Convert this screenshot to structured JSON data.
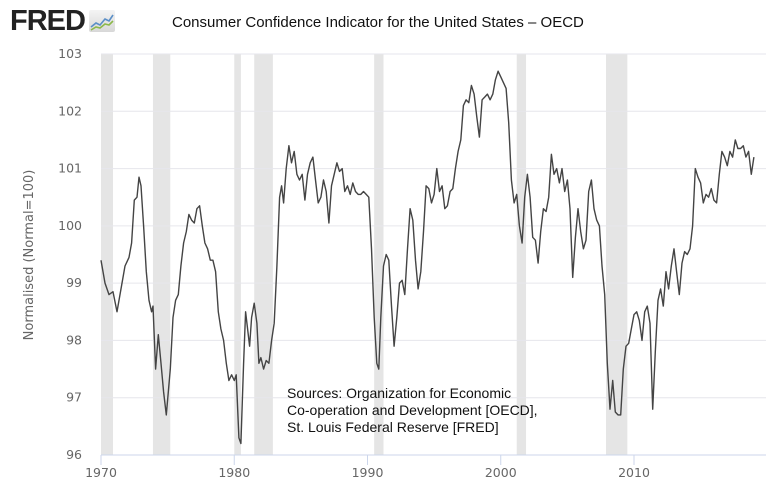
{
  "header": {
    "logo_text": "FRED",
    "logo_icon": "chart-line-icon"
  },
  "chart_data": {
    "type": "line",
    "title": "Consumer Confidence Indicator for the United States – OECD",
    "xlabel": "",
    "ylabel": "Normalised (Normal=100)",
    "ylim": [
      96,
      103
    ],
    "xlim": [
      1970,
      2019.2
    ],
    "yticks": [
      "96",
      "97",
      "98",
      "99",
      "100",
      "101",
      "102",
      "103"
    ],
    "xticks": [
      "1970",
      "1980",
      "1990",
      "2000",
      "2010"
    ],
    "grid": true,
    "line_color": "#444444",
    "recession_color": "#e5e5e5",
    "recessions": [
      [
        1970.0,
        1970.9
      ],
      [
        1973.9,
        1975.2
      ],
      [
        1980.0,
        1980.5
      ],
      [
        1981.5,
        1982.9
      ],
      [
        1990.5,
        1991.2
      ],
      [
        2001.2,
        2001.9
      ],
      [
        2007.9,
        2009.5
      ]
    ],
    "series": [
      {
        "name": "Consumer Confidence Indicator",
        "points": [
          [
            1970.0,
            99.4
          ],
          [
            1970.3,
            99.0
          ],
          [
            1970.6,
            98.8
          ],
          [
            1970.9,
            98.85
          ],
          [
            1971.2,
            98.5
          ],
          [
            1971.5,
            98.9
          ],
          [
            1971.8,
            99.3
          ],
          [
            1972.1,
            99.45
          ],
          [
            1972.3,
            99.7
          ],
          [
            1972.5,
            100.45
          ],
          [
            1972.7,
            100.5
          ],
          [
            1972.85,
            100.85
          ],
          [
            1973.0,
            100.7
          ],
          [
            1973.2,
            100.0
          ],
          [
            1973.4,
            99.2
          ],
          [
            1973.6,
            98.7
          ],
          [
            1973.8,
            98.5
          ],
          [
            1973.9,
            98.6
          ],
          [
            1974.1,
            97.5
          ],
          [
            1974.3,
            98.1
          ],
          [
            1974.5,
            97.6
          ],
          [
            1974.7,
            97.1
          ],
          [
            1974.9,
            96.7
          ],
          [
            1975.2,
            97.5
          ],
          [
            1975.4,
            98.4
          ],
          [
            1975.6,
            98.7
          ],
          [
            1975.8,
            98.8
          ],
          [
            1976.0,
            99.3
          ],
          [
            1976.2,
            99.7
          ],
          [
            1976.4,
            99.9
          ],
          [
            1976.6,
            100.2
          ],
          [
            1976.8,
            100.1
          ],
          [
            1977.0,
            100.05
          ],
          [
            1977.2,
            100.3
          ],
          [
            1977.4,
            100.35
          ],
          [
            1977.6,
            100.0
          ],
          [
            1977.8,
            99.7
          ],
          [
            1978.0,
            99.6
          ],
          [
            1978.2,
            99.4
          ],
          [
            1978.4,
            99.4
          ],
          [
            1978.6,
            99.2
          ],
          [
            1978.8,
            98.5
          ],
          [
            1979.0,
            98.2
          ],
          [
            1979.2,
            98.0
          ],
          [
            1979.4,
            97.6
          ],
          [
            1979.6,
            97.3
          ],
          [
            1979.8,
            97.4
          ],
          [
            1980.0,
            97.3
          ],
          [
            1980.15,
            97.4
          ],
          [
            1980.35,
            96.3
          ],
          [
            1980.5,
            96.2
          ],
          [
            1980.7,
            97.6
          ],
          [
            1980.85,
            98.5
          ],
          [
            1981.0,
            98.2
          ],
          [
            1981.15,
            97.9
          ],
          [
            1981.3,
            98.4
          ],
          [
            1981.5,
            98.65
          ],
          [
            1981.7,
            98.3
          ],
          [
            1981.85,
            97.6
          ],
          [
            1982.0,
            97.7
          ],
          [
            1982.2,
            97.5
          ],
          [
            1982.4,
            97.65
          ],
          [
            1982.6,
            97.6
          ],
          [
            1982.8,
            98.0
          ],
          [
            1983.0,
            98.3
          ],
          [
            1983.2,
            99.3
          ],
          [
            1983.4,
            100.5
          ],
          [
            1983.55,
            100.7
          ],
          [
            1983.7,
            100.4
          ],
          [
            1983.9,
            101.0
          ],
          [
            1984.1,
            101.4
          ],
          [
            1984.3,
            101.1
          ],
          [
            1984.5,
            101.3
          ],
          [
            1984.7,
            100.9
          ],
          [
            1984.9,
            100.8
          ],
          [
            1985.1,
            100.9
          ],
          [
            1985.3,
            100.45
          ],
          [
            1985.5,
            100.9
          ],
          [
            1985.7,
            101.1
          ],
          [
            1985.9,
            101.2
          ],
          [
            1986.1,
            100.8
          ],
          [
            1986.3,
            100.4
          ],
          [
            1986.5,
            100.5
          ],
          [
            1986.7,
            100.8
          ],
          [
            1986.9,
            100.6
          ],
          [
            1987.1,
            100.05
          ],
          [
            1987.3,
            100.7
          ],
          [
            1987.5,
            100.9
          ],
          [
            1987.7,
            101.1
          ],
          [
            1987.9,
            100.95
          ],
          [
            1988.1,
            101.0
          ],
          [
            1988.3,
            100.6
          ],
          [
            1988.5,
            100.7
          ],
          [
            1988.7,
            100.55
          ],
          [
            1988.9,
            100.75
          ],
          [
            1989.1,
            100.6
          ],
          [
            1989.3,
            100.55
          ],
          [
            1989.5,
            100.55
          ],
          [
            1989.7,
            100.6
          ],
          [
            1989.9,
            100.55
          ],
          [
            1990.1,
            100.5
          ],
          [
            1990.3,
            99.6
          ],
          [
            1990.5,
            98.4
          ],
          [
            1990.7,
            97.6
          ],
          [
            1990.85,
            97.5
          ],
          [
            1991.0,
            98.4
          ],
          [
            1991.2,
            99.3
          ],
          [
            1991.4,
            99.5
          ],
          [
            1991.6,
            99.4
          ],
          [
            1991.8,
            98.6
          ],
          [
            1992.0,
            97.9
          ],
          [
            1992.2,
            98.4
          ],
          [
            1992.4,
            99.0
          ],
          [
            1992.6,
            99.05
          ],
          [
            1992.8,
            98.8
          ],
          [
            1993.0,
            99.6
          ],
          [
            1993.2,
            100.3
          ],
          [
            1993.4,
            100.1
          ],
          [
            1993.6,
            99.4
          ],
          [
            1993.8,
            98.9
          ],
          [
            1994.0,
            99.2
          ],
          [
            1994.2,
            99.9
          ],
          [
            1994.4,
            100.7
          ],
          [
            1994.6,
            100.65
          ],
          [
            1994.8,
            100.4
          ],
          [
            1995.0,
            100.55
          ],
          [
            1995.2,
            101.0
          ],
          [
            1995.4,
            100.6
          ],
          [
            1995.6,
            100.7
          ],
          [
            1995.8,
            100.3
          ],
          [
            1996.0,
            100.35
          ],
          [
            1996.2,
            100.6
          ],
          [
            1996.4,
            100.65
          ],
          [
            1996.6,
            101.0
          ],
          [
            1996.8,
            101.3
          ],
          [
            1997.0,
            101.5
          ],
          [
            1997.2,
            102.1
          ],
          [
            1997.4,
            102.2
          ],
          [
            1997.6,
            102.15
          ],
          [
            1997.8,
            102.45
          ],
          [
            1998.0,
            102.3
          ],
          [
            1998.2,
            101.9
          ],
          [
            1998.4,
            101.55
          ],
          [
            1998.6,
            102.2
          ],
          [
            1998.8,
            102.25
          ],
          [
            1999.0,
            102.3
          ],
          [
            1999.2,
            102.2
          ],
          [
            1999.4,
            102.3
          ],
          [
            1999.6,
            102.55
          ],
          [
            1999.8,
            102.7
          ],
          [
            2000.0,
            102.6
          ],
          [
            2000.2,
            102.5
          ],
          [
            2000.4,
            102.4
          ],
          [
            2000.6,
            101.8
          ],
          [
            2000.8,
            100.8
          ],
          [
            2001.0,
            100.4
          ],
          [
            2001.2,
            100.55
          ],
          [
            2001.4,
            100.0
          ],
          [
            2001.6,
            99.7
          ],
          [
            2001.8,
            100.5
          ],
          [
            2002.0,
            100.9
          ],
          [
            2002.2,
            100.5
          ],
          [
            2002.4,
            99.8
          ],
          [
            2002.6,
            99.75
          ],
          [
            2002.8,
            99.35
          ],
          [
            2003.0,
            99.9
          ],
          [
            2003.2,
            100.3
          ],
          [
            2003.4,
            100.25
          ],
          [
            2003.6,
            100.5
          ],
          [
            2003.8,
            101.25
          ],
          [
            2004.0,
            100.9
          ],
          [
            2004.2,
            101.0
          ],
          [
            2004.4,
            100.75
          ],
          [
            2004.6,
            101.0
          ],
          [
            2004.8,
            100.6
          ],
          [
            2005.0,
            100.8
          ],
          [
            2005.2,
            100.3
          ],
          [
            2005.4,
            99.1
          ],
          [
            2005.6,
            99.8
          ],
          [
            2005.8,
            100.3
          ],
          [
            2006.0,
            99.9
          ],
          [
            2006.2,
            99.6
          ],
          [
            2006.4,
            99.75
          ],
          [
            2006.6,
            100.6
          ],
          [
            2006.8,
            100.8
          ],
          [
            2007.0,
            100.3
          ],
          [
            2007.2,
            100.1
          ],
          [
            2007.4,
            100.0
          ],
          [
            2007.6,
            99.3
          ],
          [
            2007.8,
            98.8
          ],
          [
            2008.0,
            97.6
          ],
          [
            2008.2,
            96.8
          ],
          [
            2008.4,
            97.3
          ],
          [
            2008.6,
            96.75
          ],
          [
            2008.8,
            96.7
          ],
          [
            2009.0,
            96.7
          ],
          [
            2009.2,
            97.5
          ],
          [
            2009.4,
            97.9
          ],
          [
            2009.6,
            97.95
          ],
          [
            2009.8,
            98.2
          ],
          [
            2010.0,
            98.45
          ],
          [
            2010.2,
            98.5
          ],
          [
            2010.4,
            98.35
          ],
          [
            2010.6,
            98.0
          ],
          [
            2010.8,
            98.5
          ],
          [
            2011.0,
            98.6
          ],
          [
            2011.2,
            98.3
          ],
          [
            2011.4,
            96.8
          ],
          [
            2011.6,
            97.8
          ],
          [
            2011.8,
            98.7
          ],
          [
            2012.0,
            98.9
          ],
          [
            2012.2,
            98.6
          ],
          [
            2012.4,
            99.2
          ],
          [
            2012.6,
            98.9
          ],
          [
            2012.8,
            99.3
          ],
          [
            2013.0,
            99.6
          ],
          [
            2013.2,
            99.2
          ],
          [
            2013.4,
            98.8
          ],
          [
            2013.6,
            99.35
          ],
          [
            2013.8,
            99.55
          ],
          [
            2014.0,
            99.5
          ],
          [
            2014.2,
            99.6
          ],
          [
            2014.4,
            100.0
          ],
          [
            2014.6,
            101.0
          ],
          [
            2014.8,
            100.85
          ],
          [
            2015.0,
            100.75
          ],
          [
            2015.2,
            100.4
          ],
          [
            2015.4,
            100.55
          ],
          [
            2015.6,
            100.5
          ],
          [
            2015.8,
            100.65
          ],
          [
            2016.0,
            100.45
          ],
          [
            2016.2,
            100.4
          ],
          [
            2016.4,
            100.9
          ],
          [
            2016.6,
            101.3
          ],
          [
            2016.8,
            101.2
          ],
          [
            2017.0,
            101.05
          ],
          [
            2017.2,
            101.3
          ],
          [
            2017.4,
            101.2
          ],
          [
            2017.6,
            101.5
          ],
          [
            2017.8,
            101.35
          ],
          [
            2018.0,
            101.35
          ],
          [
            2018.2,
            101.4
          ],
          [
            2018.4,
            101.2
          ],
          [
            2018.6,
            101.3
          ],
          [
            2018.8,
            100.9
          ],
          [
            2019.0,
            101.2
          ]
        ]
      }
    ],
    "annotation": "Sources:  Organization for Economic\nCo-operation and Development [OECD],\nSt. Louis Federal Reserve [FRED]"
  }
}
